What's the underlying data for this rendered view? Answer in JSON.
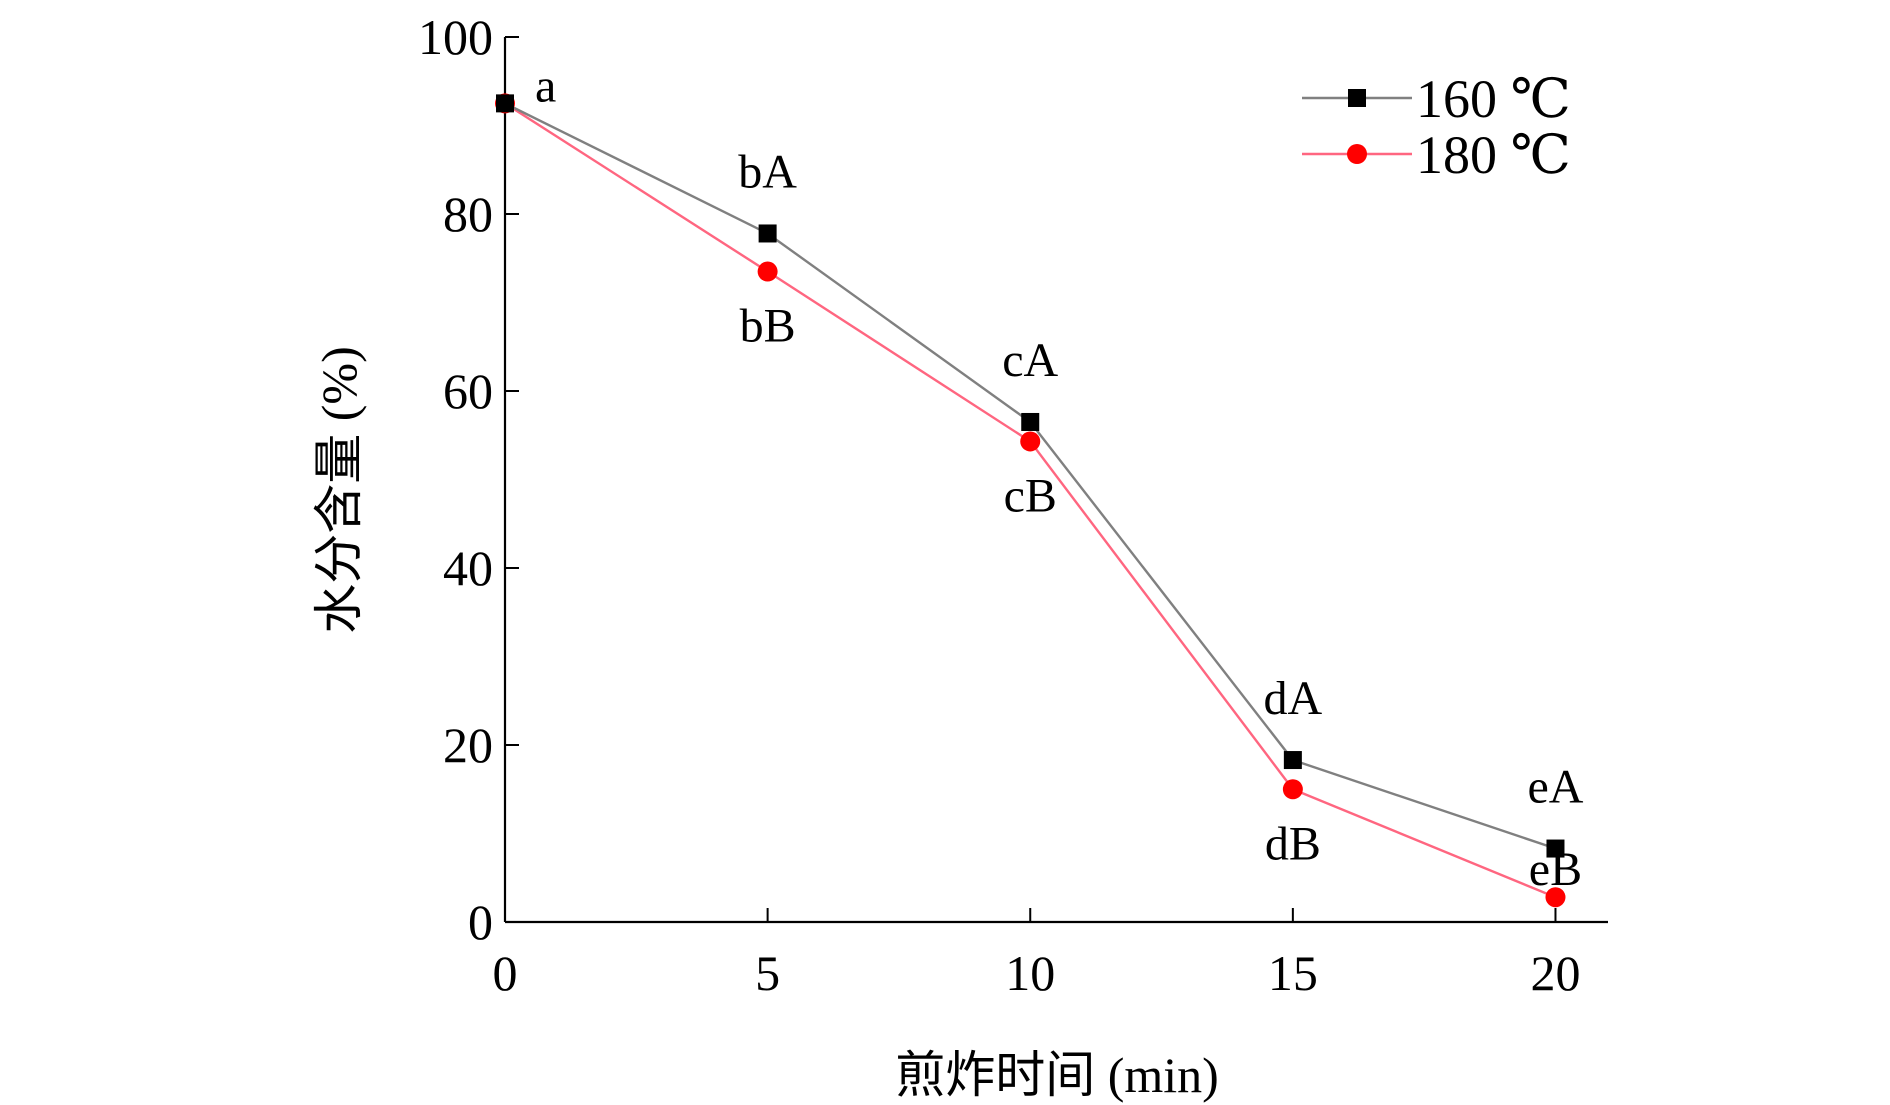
{
  "chart_data": {
    "type": "line",
    "xlabel": "煎炸时间 (min)",
    "ylabel": "水分含量 (%)",
    "xlim": [
      0,
      21
    ],
    "ylim": [
      0,
      100
    ],
    "x_ticks": [
      0,
      5,
      10,
      15,
      20
    ],
    "y_ticks": [
      0,
      20,
      40,
      60,
      80,
      100
    ],
    "x_tick_labels": [
      "0",
      "5",
      "10",
      "15",
      "20"
    ],
    "y_tick_labels": [
      "0",
      "20",
      "40",
      "60",
      "80",
      "100"
    ],
    "legend_position": "top-right",
    "grid": false,
    "series": [
      {
        "name": "160 ℃",
        "color": "#808080",
        "marker_color": "#000000",
        "marker": "square",
        "x": [
          0,
          5,
          10,
          15,
          20
        ],
        "values": [
          92.5,
          77.8,
          56.5,
          18.3,
          8.3
        ],
        "labels": [
          "a",
          "bA",
          "cA",
          "dA",
          "eA"
        ]
      },
      {
        "name": "180 ℃",
        "color": "#ff6680",
        "marker_color": "#ff0000",
        "marker": "circle",
        "x": [
          0,
          5,
          10,
          15,
          20
        ],
        "values": [
          92.5,
          73.5,
          54.3,
          15.0,
          2.8
        ],
        "labels": [
          "",
          "bB",
          "cB",
          "dB",
          "eB"
        ]
      }
    ]
  }
}
